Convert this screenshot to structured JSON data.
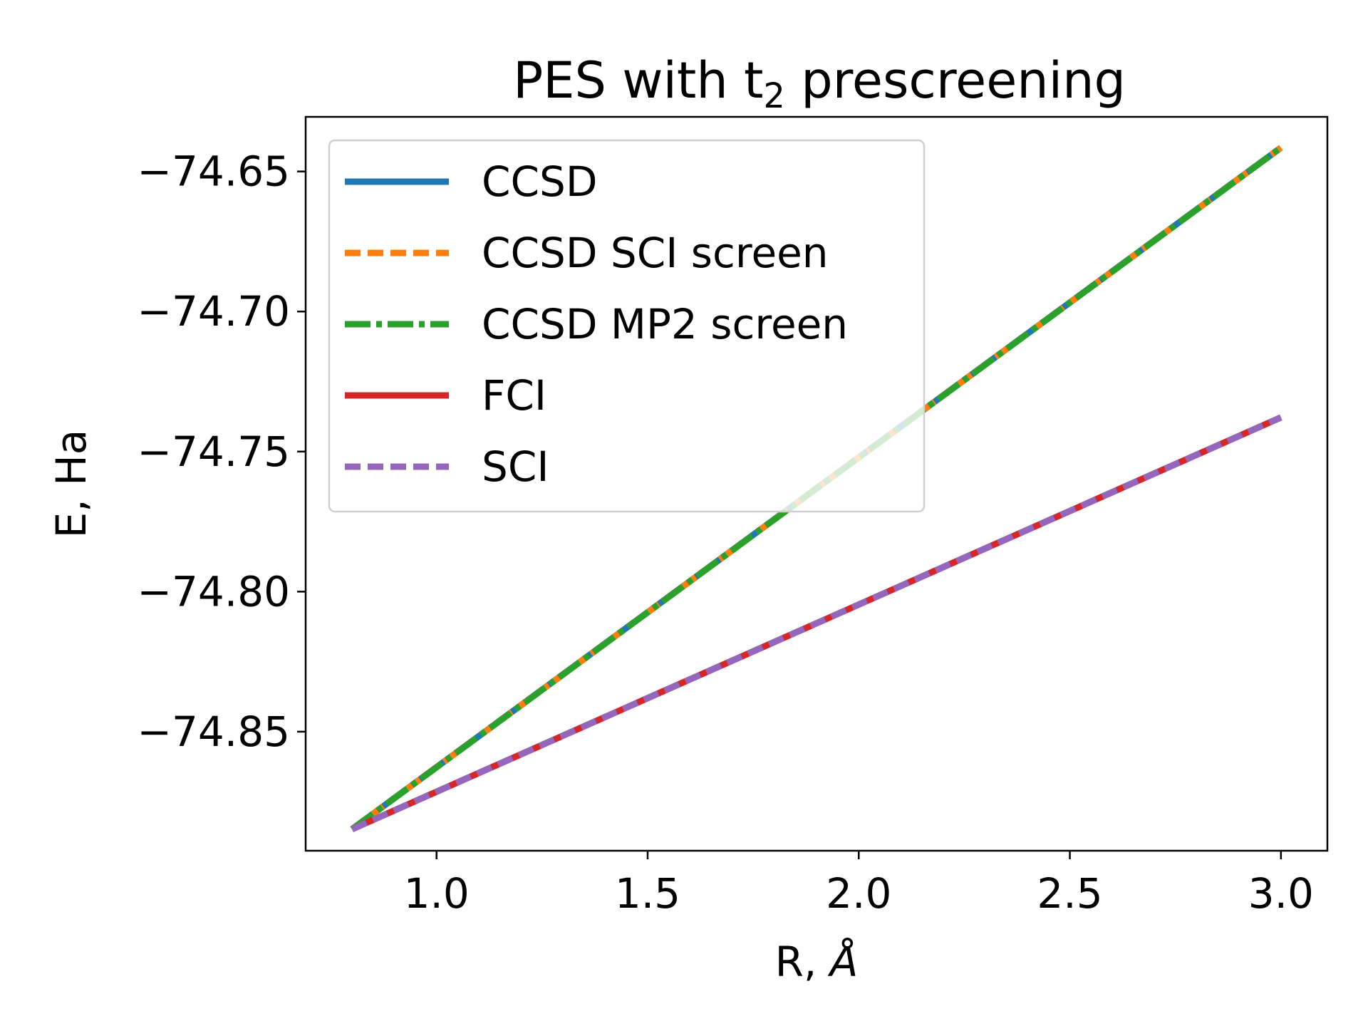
{
  "chart_data": {
    "type": "line",
    "title_main": "PES with t",
    "title_sub": "2",
    "title_rest": " prescreening",
    "xlabel_main": "R, ",
    "xlabel_unit": "Å",
    "ylabel": "E, Ha",
    "xlim": [
      0.69,
      3.11
    ],
    "ylim": [
      -74.8925,
      -74.6305
    ],
    "xticks": [
      1.0,
      1.5,
      2.0,
      2.5,
      3.0
    ],
    "xtick_labels": [
      "1.0",
      "1.5",
      "2.0",
      "2.5",
      "3.0"
    ],
    "yticks": [
      -74.65,
      -74.7,
      -74.75,
      -74.8,
      -74.85
    ],
    "ytick_labels": [
      "−74.65",
      "−74.70",
      "−74.75",
      "−74.80",
      "−74.85"
    ],
    "grid": false,
    "legend_position": "upper-left",
    "series": [
      {
        "name": "CCSD",
        "color": "#1f77b4",
        "style": "solid",
        "x": [
          0.8,
          3.0
        ],
        "y": [
          -74.8848,
          -74.6415
        ]
      },
      {
        "name": "CCSD SCI screen",
        "color": "#ff7f0e",
        "style": "dashed",
        "x": [
          0.8,
          3.0
        ],
        "y": [
          -74.8848,
          -74.6415
        ]
      },
      {
        "name": "CCSD MP2 screen",
        "color": "#2ca02c",
        "style": "dashdot",
        "x": [
          0.8,
          3.0
        ],
        "y": [
          -74.8848,
          -74.6415
        ]
      },
      {
        "name": "FCI",
        "color": "#d62728",
        "style": "solid",
        "x": [
          0.8,
          3.0
        ],
        "y": [
          -74.8848,
          -74.7378
        ]
      },
      {
        "name": "SCI",
        "color": "#9467bd",
        "style": "dashed",
        "x": [
          0.8,
          3.0
        ],
        "y": [
          -74.8848,
          -74.7378
        ]
      }
    ]
  }
}
